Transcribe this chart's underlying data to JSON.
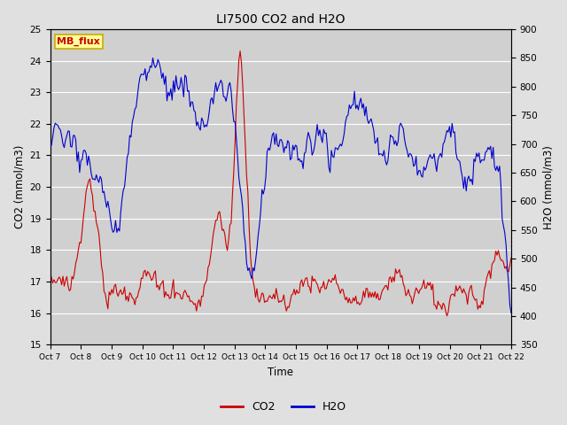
{
  "title": "LI7500 CO2 and H2O",
  "xlabel": "Time",
  "ylabel_left": "CO2 (mmol/m3)",
  "ylabel_right": "H2O (mmol/m3)",
  "ylim_left": [
    15.0,
    25.0
  ],
  "ylim_right": [
    350,
    900
  ],
  "yticks_left": [
    15.0,
    16.0,
    17.0,
    18.0,
    19.0,
    20.0,
    21.0,
    22.0,
    23.0,
    24.0,
    25.0
  ],
  "yticks_right": [
    350,
    400,
    450,
    500,
    550,
    600,
    650,
    700,
    750,
    800,
    850,
    900
  ],
  "xtick_labels": [
    "Oct 7",
    "Oct 8",
    "Oct 9",
    "Oct 10",
    "Oct 11",
    "Oct 12",
    "Oct 13",
    "Oct 14",
    "Oct 15",
    "Oct 16",
    "Oct 17",
    "Oct 18",
    "Oct 19",
    "Oct 20",
    "Oct 21",
    "Oct 22"
  ],
  "co2_color": "#cc0000",
  "h2o_color": "#0000cc",
  "fig_bg_color": "#e0e0e0",
  "plot_bg_color": "#d0d0d0",
  "grid_color": "#ffffff",
  "legend_box_facecolor": "#ffff99",
  "legend_box_edgecolor": "#ccaa00",
  "watermark_text": "MB_flux",
  "watermark_color": "#cc0000"
}
